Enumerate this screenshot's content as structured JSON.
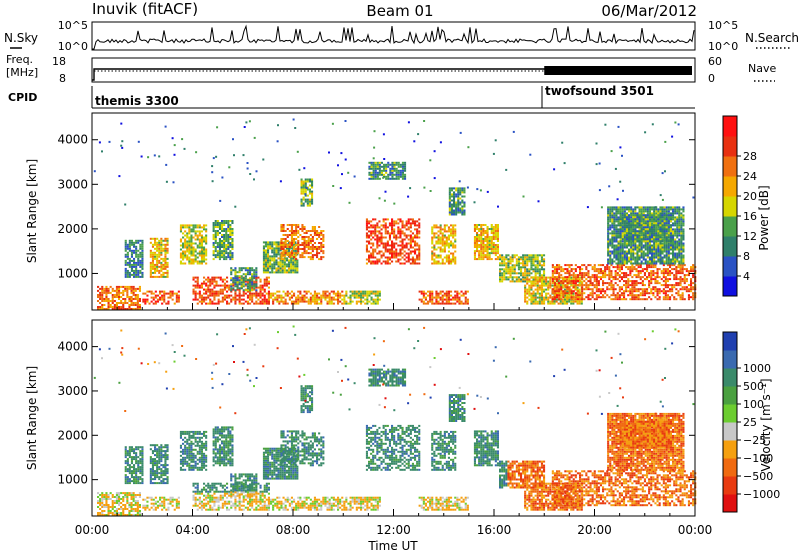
{
  "header": {
    "station": "Inuvik (fitACF)",
    "beam": "Beam 01",
    "date": "06/Mar/2012"
  },
  "panels": {
    "nsky": {
      "label": "N.Sky",
      "ticks_left": [
        "10^5",
        "10^0"
      ],
      "ticks_right": [
        "10^5",
        "10^0"
      ],
      "right_label": "N.Search"
    },
    "freq": {
      "label_line1": "Freq.",
      "label_line2": "[MHz]",
      "ticks_left": [
        "18",
        "8"
      ],
      "ticks_right": [
        "60",
        "0"
      ],
      "right_label": "Nave"
    },
    "cpid": {
      "label": "CPID",
      "modes": [
        {
          "name": "themis 3300",
          "start_hour": 0.0
        },
        {
          "name": "twofsound 3501",
          "start_hour": 18.0
        }
      ]
    }
  },
  "chart_data": [
    {
      "type": "heatmap",
      "name": "power",
      "ylabel": "Slant Range [km]",
      "yticks": [
        1000,
        2000,
        3000,
        4000
      ],
      "ylim": [
        180,
        4600
      ],
      "xlim": [
        0,
        24
      ],
      "colorbar": {
        "label": "Power [dB]",
        "ticks": [
          "4",
          "8",
          "12",
          "16",
          "20",
          "24",
          "28"
        ],
        "colors": [
          "#1010e0",
          "#2a52c4",
          "#2f7f6a",
          "#4aa04a",
          "#d6d600",
          "#f5a800",
          "#f07010",
          "#e83010",
          "#ff1010"
        ]
      }
    },
    {
      "type": "heatmap",
      "name": "velocity",
      "ylabel": "Slant Range [km]",
      "yticks": [
        1000,
        2000,
        3000,
        4000
      ],
      "ylim": [
        180,
        4600
      ],
      "xlim": [
        0,
        24
      ],
      "xlabel": "Time UT",
      "xticks": [
        "00:00",
        "04:00",
        "08:00",
        "12:00",
        "16:00",
        "20:00",
        "00:00"
      ],
      "colorbar": {
        "label": "Velocity [m s⁻¹]",
        "ticks": [
          "1000",
          "500",
          "100",
          "25",
          "−25",
          "−100",
          "−500",
          "−1000"
        ],
        "colors": [
          "#2040b0",
          "#3a6ab0",
          "#3a8a6a",
          "#4aa040",
          "#6ccd30",
          "#c8c8c8",
          "#f5a010",
          "#f06a10",
          "#e83a10",
          "#e01010"
        ]
      }
    }
  ]
}
